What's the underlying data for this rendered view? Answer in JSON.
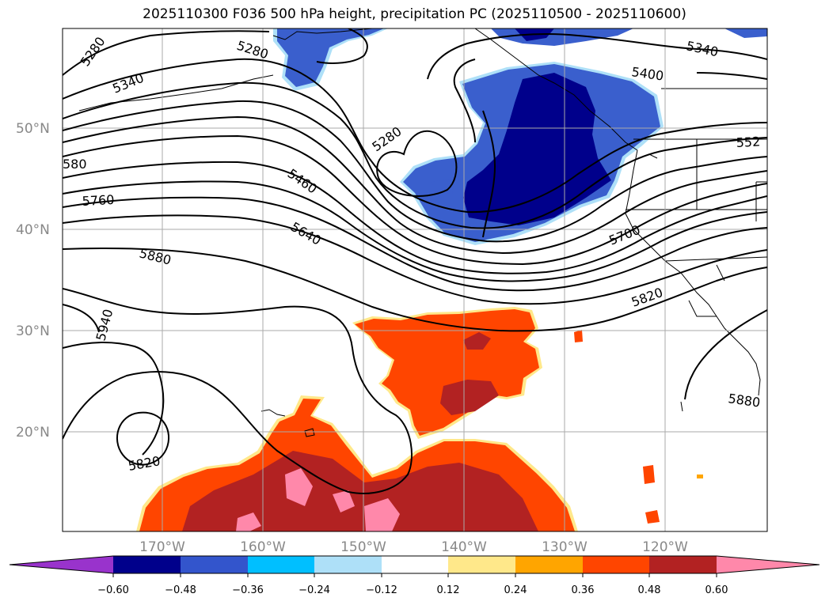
{
  "title": "2025110300 F036 500 hPa height, precipitation PC (2025110500 - 2025110600)",
  "lat_labels": [
    "50°N",
    "40°N",
    "30°N",
    "20°N"
  ],
  "lon_labels": [
    "170°W",
    "160°W",
    "150°W",
    "140°W",
    "130°W",
    "120°W"
  ],
  "contour_labels": [
    "5280",
    "5340",
    "5280",
    "5280",
    "5340",
    "5400",
    "552",
    "580",
    "5460",
    "5760",
    "5640",
    "5700",
    "5880",
    "5820",
    "5940",
    "5820",
    "5880"
  ],
  "colorbar": {
    "ticks": [
      "−0.60",
      "−0.48",
      "−0.36",
      "−0.24",
      "−0.12",
      "0.12",
      "0.24",
      "0.36",
      "0.48",
      "0.60"
    ],
    "colors": [
      "#9933cc",
      "#00008b",
      "#3355cc",
      "#00bfff",
      "#aee0f8",
      "#ffffff",
      "#ffe88a",
      "#ffa500",
      "#ff4500",
      "#b22222",
      "#ff88aa"
    ]
  },
  "colors": {
    "drier_dark": "#00008b",
    "drier_mid": "#3a5fcd",
    "drier_light": "#00bfff",
    "wetter_orange": "#ff4500",
    "wetter_dark": "#b22222",
    "wetter_pink": "#ff88aa",
    "wetter_yellow": "#ffe88a"
  }
}
